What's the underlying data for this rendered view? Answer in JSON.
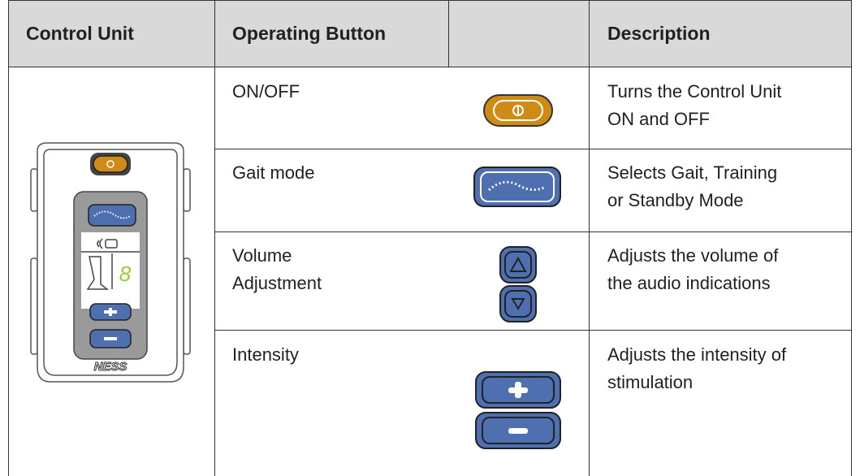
{
  "table": {
    "header": {
      "control_unit": "Control Unit",
      "operating_button": "Operating Button",
      "description": "Description"
    },
    "rows": [
      {
        "button": "ON/OFF",
        "description": [
          "Turns the Control Unit",
          "ON and OFF"
        ]
      },
      {
        "button": "Gait mode",
        "description": [
          "Selects Gait, Training",
          "or Standby Mode"
        ]
      },
      {
        "button": [
          "Volume",
          "Adjustment"
        ],
        "description": [
          "Adjusts the volume of",
          "the audio indications"
        ]
      },
      {
        "button": "Intensity",
        "description": [
          "Adjusts the intensity of",
          "stimulation"
        ]
      }
    ]
  },
  "device": {
    "brand": "NESS",
    "display_digit": "8"
  }
}
